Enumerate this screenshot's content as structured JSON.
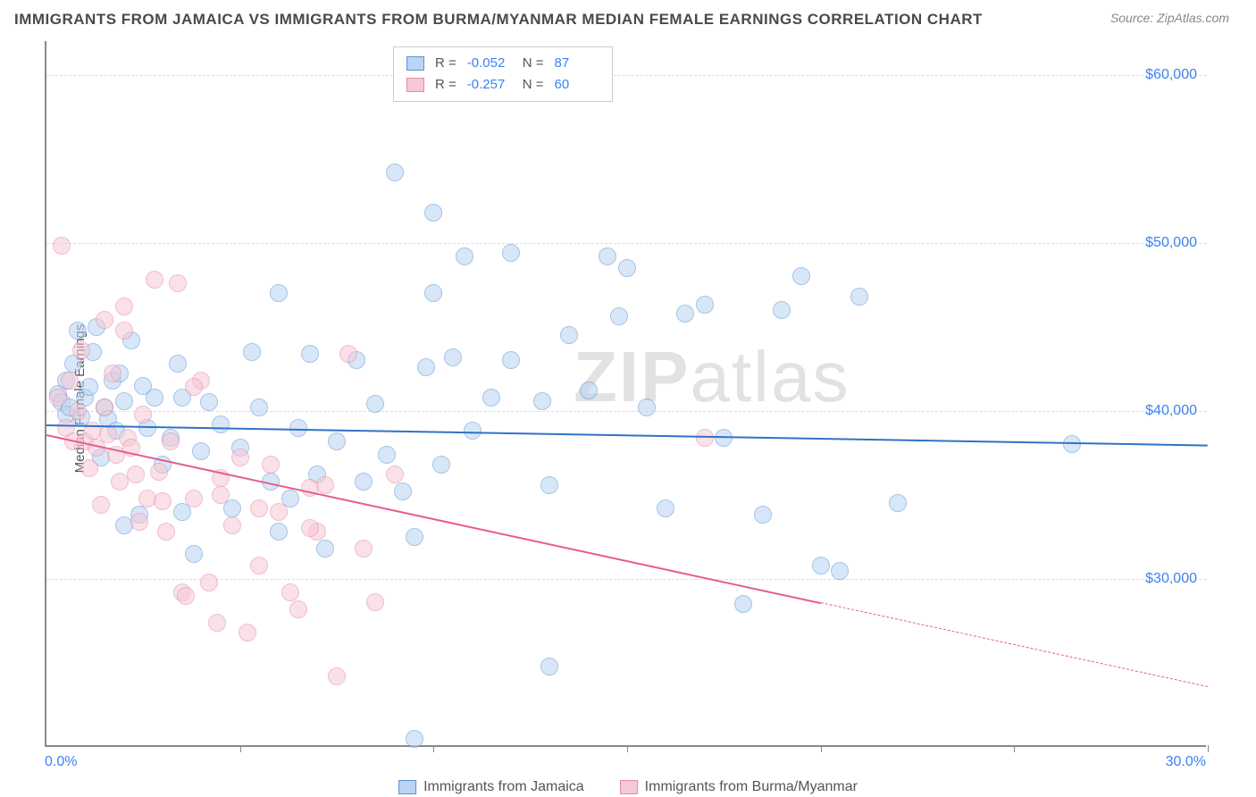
{
  "title": "IMMIGRANTS FROM JAMAICA VS IMMIGRANTS FROM BURMA/MYANMAR MEDIAN FEMALE EARNINGS CORRELATION CHART",
  "source": "Source: ZipAtlas.com",
  "ylabel": "Median Female Earnings",
  "watermark_bold": "ZIP",
  "watermark_light": "atlas",
  "chart": {
    "type": "scatter-with-regression",
    "background_color": "#ffffff",
    "grid_color": "#dddddd",
    "axis_color": "#888888",
    "tick_label_color": "#3b82f6",
    "xlim": [
      0,
      30
    ],
    "ylim": [
      20000,
      62000
    ],
    "ygrid": [
      30000,
      40000,
      50000,
      60000
    ],
    "ytick_labels": [
      "$30,000",
      "$40,000",
      "$50,000",
      "$60,000"
    ],
    "xaxis_min_label": "0.0%",
    "xaxis_max_label": "30.0%",
    "xticks": [
      5,
      10,
      15,
      20,
      25,
      30
    ],
    "point_radius": 10,
    "point_opacity": 0.55,
    "trend_line_width": 2
  },
  "series": [
    {
      "name": "Immigrants from Jamaica",
      "fill_color": "#b9d4f4",
      "stroke_color": "#5a94d6",
      "line_color": "#2f73c9",
      "R": "-0.052",
      "N": "87",
      "trend": {
        "x0": 0,
        "y0": 39200,
        "x1": 30,
        "y1": 38000,
        "dash_from_x": 30
      },
      "points": [
        [
          0.3,
          41000
        ],
        [
          0.4,
          40500
        ],
        [
          0.5,
          39800
        ],
        [
          0.5,
          41800
        ],
        [
          0.6,
          40200
        ],
        [
          0.7,
          42800
        ],
        [
          0.8,
          44800
        ],
        [
          0.9,
          39600
        ],
        [
          1.0,
          40800
        ],
        [
          1.1,
          41400
        ],
        [
          1.2,
          43500
        ],
        [
          1.3,
          45000
        ],
        [
          1.4,
          37200
        ],
        [
          1.5,
          40200
        ],
        [
          1.6,
          39500
        ],
        [
          1.7,
          41800
        ],
        [
          1.8,
          38800
        ],
        [
          1.9,
          42200
        ],
        [
          2.0,
          40600
        ],
        [
          2.2,
          44200
        ],
        [
          2.4,
          33800
        ],
        [
          2.5,
          41500
        ],
        [
          2.6,
          39000
        ],
        [
          2.8,
          40800
        ],
        [
          3.0,
          36800
        ],
        [
          3.2,
          38400
        ],
        [
          3.4,
          42800
        ],
        [
          3.5,
          34000
        ],
        [
          3.8,
          31500
        ],
        [
          4.0,
          37600
        ],
        [
          4.2,
          40500
        ],
        [
          4.5,
          39200
        ],
        [
          4.8,
          34200
        ],
        [
          5.0,
          37800
        ],
        [
          5.3,
          43500
        ],
        [
          5.5,
          40200
        ],
        [
          5.8,
          35800
        ],
        [
          6.0,
          47000
        ],
        [
          6.3,
          34800
        ],
        [
          6.5,
          39000
        ],
        [
          6.8,
          43400
        ],
        [
          7.0,
          36200
        ],
        [
          7.2,
          31800
        ],
        [
          7.5,
          38200
        ],
        [
          8.0,
          43000
        ],
        [
          8.2,
          35800
        ],
        [
          8.5,
          40400
        ],
        [
          8.8,
          37400
        ],
        [
          9.0,
          54200
        ],
        [
          9.2,
          35200
        ],
        [
          9.5,
          32500
        ],
        [
          9.8,
          42600
        ],
        [
          10.0,
          47000
        ],
        [
          10.0,
          51800
        ],
        [
          10.2,
          36800
        ],
        [
          10.5,
          43200
        ],
        [
          10.8,
          49200
        ],
        [
          11.0,
          38800
        ],
        [
          11.5,
          40800
        ],
        [
          12.0,
          49400
        ],
        [
          12.0,
          43000
        ],
        [
          12.8,
          40600
        ],
        [
          13.0,
          35600
        ],
        [
          13.0,
          24800
        ],
        [
          13.5,
          44500
        ],
        [
          14.0,
          41200
        ],
        [
          14.5,
          49200
        ],
        [
          14.8,
          45600
        ],
        [
          15.0,
          48500
        ],
        [
          15.5,
          40200
        ],
        [
          16.0,
          34200
        ],
        [
          16.5,
          45800
        ],
        [
          17.0,
          46300
        ],
        [
          17.5,
          38400
        ],
        [
          18.0,
          28500
        ],
        [
          18.5,
          33800
        ],
        [
          19.0,
          46000
        ],
        [
          19.5,
          48000
        ],
        [
          20.0,
          30800
        ],
        [
          20.5,
          30500
        ],
        [
          21.0,
          46800
        ],
        [
          22.0,
          34500
        ],
        [
          9.5,
          20500
        ],
        [
          26.5,
          38000
        ],
        [
          2.0,
          33200
        ],
        [
          3.5,
          40800
        ],
        [
          6.0,
          32800
        ]
      ]
    },
    {
      "name": "Immigrants from Burma/Myanmar",
      "fill_color": "#f6c8d5",
      "stroke_color": "#e58aa5",
      "line_color": "#e75c8b",
      "R": "-0.257",
      "N": "60",
      "trend": {
        "x0": 0,
        "y0": 38600,
        "x1": 20,
        "y1": 28600,
        "dash_from_x": 20
      },
      "points": [
        [
          0.3,
          40800
        ],
        [
          0.4,
          49800
        ],
        [
          0.5,
          39000
        ],
        [
          0.6,
          41800
        ],
        [
          0.7,
          38200
        ],
        [
          0.8,
          40000
        ],
        [
          0.9,
          43600
        ],
        [
          1.0,
          38200
        ],
        [
          1.1,
          36600
        ],
        [
          1.2,
          38800
        ],
        [
          1.3,
          37800
        ],
        [
          1.4,
          34400
        ],
        [
          1.5,
          40200
        ],
        [
          1.6,
          38600
        ],
        [
          1.7,
          42200
        ],
        [
          1.8,
          37400
        ],
        [
          1.9,
          35800
        ],
        [
          2.0,
          44800
        ],
        [
          2.1,
          38400
        ],
        [
          2.2,
          37800
        ],
        [
          2.3,
          36200
        ],
        [
          2.4,
          33400
        ],
        [
          2.5,
          39800
        ],
        [
          2.6,
          34800
        ],
        [
          2.8,
          47800
        ],
        [
          2.9,
          36400
        ],
        [
          3.0,
          34600
        ],
        [
          3.1,
          32800
        ],
        [
          3.2,
          38200
        ],
        [
          3.4,
          47600
        ],
        [
          3.5,
          29200
        ],
        [
          3.6,
          29000
        ],
        [
          3.8,
          34800
        ],
        [
          4.0,
          41800
        ],
        [
          4.2,
          29800
        ],
        [
          4.4,
          27400
        ],
        [
          4.5,
          35000
        ],
        [
          4.8,
          33200
        ],
        [
          5.0,
          37200
        ],
        [
          5.2,
          26800
        ],
        [
          5.5,
          34200
        ],
        [
          5.8,
          36800
        ],
        [
          6.0,
          34000
        ],
        [
          6.3,
          29200
        ],
        [
          6.5,
          28200
        ],
        [
          6.8,
          35400
        ],
        [
          7.0,
          32800
        ],
        [
          7.5,
          24200
        ],
        [
          7.8,
          43400
        ],
        [
          8.2,
          31800
        ],
        [
          8.5,
          28600
        ],
        [
          9.0,
          36200
        ],
        [
          2.0,
          46200
        ],
        [
          1.5,
          45400
        ],
        [
          3.8,
          41400
        ],
        [
          4.5,
          36000
        ],
        [
          5.5,
          30800
        ],
        [
          6.8,
          33000
        ],
        [
          17.0,
          38400
        ],
        [
          7.2,
          35600
        ]
      ]
    }
  ],
  "bottom_legend": {
    "items": [
      {
        "label": "Immigrants from Jamaica",
        "fill": "#b9d4f4",
        "stroke": "#5a94d6"
      },
      {
        "label": "Immigrants from Burma/Myanmar",
        "fill": "#f6c8d5",
        "stroke": "#e58aa5"
      }
    ]
  }
}
